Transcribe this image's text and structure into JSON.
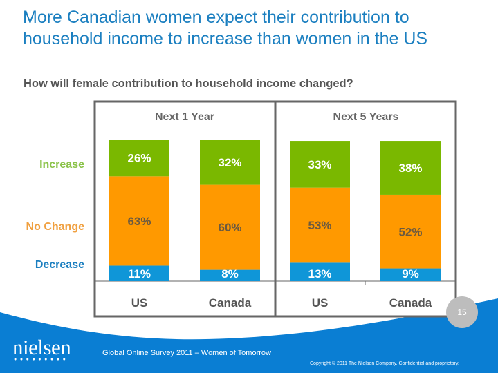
{
  "title": "More Canadian women expect their contribution to household income to increase than women in the US",
  "subtitle": "How will female contribution to household income changed?",
  "footer": {
    "logo": "nielsen",
    "logo_dots": "●●●●●●●●●",
    "survey": "Global Online Survey 2011 – Women of Tomorrow",
    "copyright": "Copyright © 2011 The Nielsen Company. Confidential and proprietary.",
    "page_number": "15"
  },
  "colors": {
    "increase": "#7ab800",
    "no_change": "#ff9900",
    "decrease": "#0f96d8",
    "title": "#1b7fc0",
    "brand_blue": "#0a7ed3",
    "frame": "#666666"
  },
  "chart_data": {
    "type": "bar",
    "stacked": true,
    "title": "How will female contribution to household income changed?",
    "groups": [
      {
        "label": "Next 1 Year",
        "categories": [
          "US",
          "Canada"
        ]
      },
      {
        "label": "Next 5 Years",
        "categories": [
          "US",
          "Canada"
        ]
      }
    ],
    "categories": [
      "US",
      "Canada",
      "US",
      "Canada"
    ],
    "series": [
      {
        "name": "Decrease",
        "color": "#0f96d8",
        "values": [
          11,
          8,
          13,
          9
        ]
      },
      {
        "name": "No Change",
        "color": "#ff9900",
        "values": [
          63,
          60,
          53,
          52
        ]
      },
      {
        "name": "Increase",
        "color": "#7ab800",
        "values": [
          26,
          32,
          33,
          38
        ]
      }
    ],
    "data_labels": [
      [
        "11%",
        "8%",
        "13%",
        "9%"
      ],
      [
        "63%",
        "60%",
        "53%",
        "52%"
      ],
      [
        "26%",
        "32%",
        "33%",
        "38%"
      ]
    ],
    "legend": [
      "Increase",
      "No Change",
      "Decrease"
    ],
    "legend_position": "left",
    "ylabel": "",
    "xlabel": "",
    "ylim": [
      0,
      100
    ],
    "grid": false
  }
}
